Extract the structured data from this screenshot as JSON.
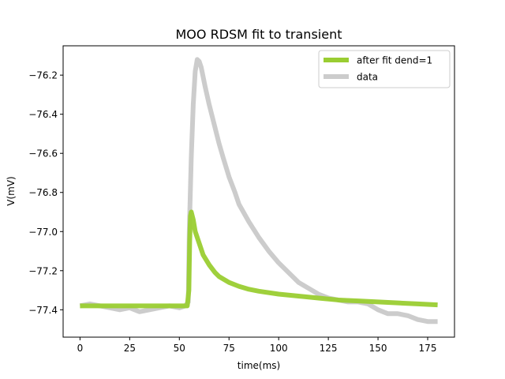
{
  "chart_data": {
    "type": "line",
    "title": "MOO RDSM fit to transient",
    "xlabel": "time(ms)",
    "ylabel": "V(mV)",
    "xlim": [
      -8.5,
      188.5
    ],
    "ylim": [
      -77.54,
      -76.05
    ],
    "xticks": [
      0,
      25,
      50,
      75,
      100,
      125,
      150,
      175
    ],
    "yticks": [
      -77.4,
      -77.2,
      -77.0,
      -76.8,
      -76.6,
      -76.4,
      -76.2
    ],
    "ytick_labels": [
      "−77.4",
      "−77.2",
      "−77.0",
      "−76.8",
      "−76.6",
      "−76.4",
      "−76.2"
    ],
    "legend_position": "top-right",
    "grid": false,
    "series": [
      {
        "name": "data",
        "color": "#cccccc",
        "x": [
          0,
          5,
          10,
          15,
          20,
          25,
          30,
          35,
          40,
          45,
          50,
          53,
          54.5,
          55,
          56,
          57,
          58,
          59,
          60,
          61,
          62,
          63,
          65,
          67,
          70,
          72,
          75,
          78,
          80,
          85,
          90,
          95,
          100,
          105,
          110,
          115,
          120,
          125,
          130,
          135,
          140,
          145,
          150,
          155,
          160,
          165,
          170,
          175,
          180
        ],
        "y": [
          -77.38,
          -77.37,
          -77.38,
          -77.39,
          -77.4,
          -77.39,
          -77.41,
          -77.4,
          -77.39,
          -77.38,
          -77.39,
          -77.38,
          -77.36,
          -77.0,
          -76.62,
          -76.35,
          -76.18,
          -76.12,
          -76.13,
          -76.16,
          -76.21,
          -76.26,
          -76.35,
          -76.43,
          -76.55,
          -76.62,
          -76.72,
          -76.8,
          -76.86,
          -76.95,
          -77.03,
          -77.1,
          -77.16,
          -77.21,
          -77.26,
          -77.29,
          -77.32,
          -77.34,
          -77.35,
          -77.36,
          -77.36,
          -77.37,
          -77.4,
          -77.42,
          -77.42,
          -77.43,
          -77.45,
          -77.46,
          -77.46
        ]
      },
      {
        "name": "after fit dend=1",
        "color": "#9acd32",
        "x": [
          0,
          10,
          20,
          30,
          40,
          50,
          54,
          54.8,
          55.2,
          55.6,
          56,
          57,
          58,
          60,
          62,
          65,
          68,
          70,
          75,
          80,
          85,
          90,
          100,
          110,
          120,
          130,
          140,
          150,
          160,
          170,
          180
        ],
        "y": [
          -77.38,
          -77.38,
          -77.38,
          -77.38,
          -77.38,
          -77.38,
          -77.38,
          -77.3,
          -77.05,
          -76.92,
          -76.9,
          -76.94,
          -77.0,
          -77.06,
          -77.12,
          -77.17,
          -77.21,
          -77.23,
          -77.26,
          -77.28,
          -77.295,
          -77.305,
          -77.32,
          -77.33,
          -77.34,
          -77.35,
          -77.355,
          -77.36,
          -77.365,
          -77.37,
          -77.375
        ]
      }
    ]
  }
}
